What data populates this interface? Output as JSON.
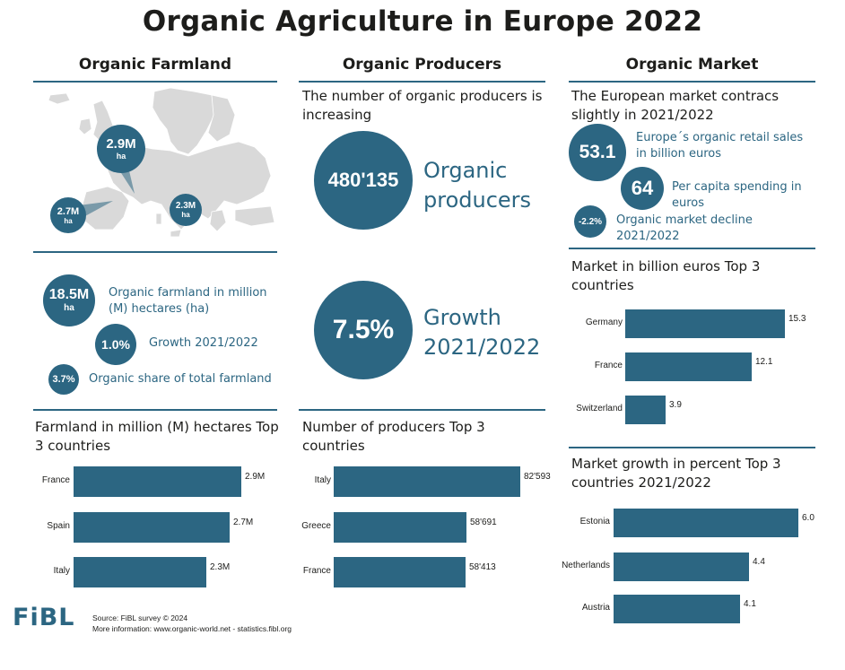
{
  "title": "Organic Agriculture in Europe 2022",
  "columns": {
    "farmland": "Organic Farmland",
    "producers": "Organic Producers",
    "market": "Organic Market"
  },
  "colors": {
    "accent": "#2c6682",
    "map_land": "#d9d9d9"
  },
  "map": {
    "callouts": [
      {
        "value": "2.9M",
        "unit": "ha"
      },
      {
        "value": "2.7M",
        "unit": "ha"
      },
      {
        "value": "2.3M",
        "unit": "ha"
      }
    ]
  },
  "farmland_kpis": [
    {
      "value": "18.5M",
      "unit": "ha",
      "label": "Organic farmland in million (M) hectares (ha)"
    },
    {
      "value": "1.0%",
      "label": "Growth 2021/2022"
    },
    {
      "value": "3.7%",
      "label": "Organic share of total farmland"
    }
  ],
  "producers": {
    "intro": "The number of organic producers is increasing",
    "count": "480'135",
    "count_label": "Organic producers",
    "growth": "7.5%",
    "growth_label": "Growth 2021/2022"
  },
  "market": {
    "intro": "The European market contracs slightly in 2021/2022",
    "kpis": [
      {
        "value": "53.1",
        "label": "Europe´s organic retail sales in billion euros"
      },
      {
        "value": "64",
        "label": "Per capita spending in euros"
      },
      {
        "value": "-2.2%",
        "label": "Organic market decline 2021/2022"
      }
    ]
  },
  "chart_data": [
    {
      "type": "bar",
      "orientation": "horizontal",
      "title": "Farmland in million (M) hectares Top 3 countries",
      "categories": [
        "France",
        "Spain",
        "Italy"
      ],
      "values": [
        2.9,
        2.7,
        2.3
      ],
      "labels": [
        "2.9M",
        "2.7M",
        "2.3M"
      ]
    },
    {
      "type": "bar",
      "orientation": "horizontal",
      "title": "Number of producers Top 3 countries",
      "categories": [
        "Italy",
        "Greece",
        "France"
      ],
      "values": [
        82593,
        58691,
        58413
      ],
      "labels": [
        "82'593",
        "58'691",
        "58'413"
      ]
    },
    {
      "type": "bar",
      "orientation": "horizontal",
      "title": "Market in billion euros Top 3 countries",
      "categories": [
        "Germany",
        "France",
        "Switzerland"
      ],
      "values": [
        15.3,
        12.1,
        3.9
      ],
      "labels": [
        "15.3",
        "12.1",
        "3.9"
      ]
    },
    {
      "type": "bar",
      "orientation": "horizontal",
      "title": "Market growth in percent Top 3 countries 2021/2022",
      "categories": [
        "Estonia",
        "Netherlands",
        "Austria"
      ],
      "values": [
        6.0,
        4.4,
        4.1
      ],
      "labels": [
        "6.0",
        "4.4",
        "4.1"
      ]
    }
  ],
  "footer": {
    "logo": "FiBL",
    "source": "Source: FiBL survey © 2024",
    "more": "More information: www.organic-world.net - statistics.fibl.org"
  }
}
